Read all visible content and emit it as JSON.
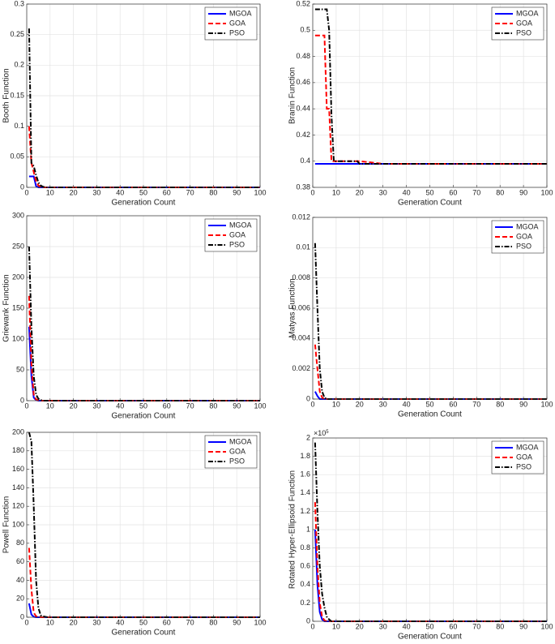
{
  "chart_data": [
    {
      "type": "line",
      "xlabel": "Generation Count",
      "ylabel": "Booth Function",
      "x": [
        1,
        2,
        3,
        4,
        5,
        6,
        7,
        8,
        9,
        10,
        11,
        12,
        13,
        14,
        15,
        16,
        17,
        18,
        19,
        20,
        30,
        40,
        50,
        60,
        70,
        80,
        90,
        100
      ],
      "series": [
        {
          "name": "MGOA",
          "color": "#0000ff",
          "line_style": "solid",
          "values": [
            0.018,
            0.018,
            0.018,
            0.002,
            0,
            0,
            0,
            0,
            0,
            0,
            0,
            0,
            0,
            0,
            0,
            0,
            0,
            0,
            0,
            0,
            0,
            0,
            0,
            0,
            0,
            0,
            0,
            0
          ]
        },
        {
          "name": "GOA",
          "color": "#ff0000",
          "line_style": "dashed",
          "values": [
            0.1,
            0.04,
            0.025,
            0.01,
            0.003,
            0.001,
            0,
            0,
            0,
            0,
            0,
            0,
            0,
            0,
            0,
            0,
            0,
            0,
            0,
            0,
            0,
            0,
            0,
            0,
            0,
            0,
            0,
            0
          ]
        },
        {
          "name": "PSO",
          "color": "#000000",
          "line_style": "dashdot",
          "values": [
            0.26,
            0.04,
            0.035,
            0.02,
            0.008,
            0.003,
            0.001,
            0,
            0,
            0,
            0,
            0,
            0,
            0,
            0,
            0,
            0,
            0,
            0,
            0,
            0,
            0,
            0,
            0,
            0,
            0,
            0,
            0
          ]
        }
      ],
      "xlim": [
        0,
        100
      ],
      "xticks": [
        0,
        10,
        20,
        30,
        40,
        50,
        60,
        70,
        80,
        90,
        100
      ],
      "ylim": [
        0,
        0.3
      ],
      "yticks": [
        0,
        0.05,
        0.1,
        0.15,
        0.2,
        0.25,
        0.3
      ],
      "grid": true,
      "legend": "upper right"
    },
    {
      "type": "line",
      "xlabel": "Generation Count",
      "ylabel": "Branin Function",
      "x": [
        1,
        2,
        3,
        4,
        5,
        6,
        7,
        8,
        9,
        10,
        11,
        12,
        13,
        14,
        15,
        16,
        17,
        18,
        19,
        20,
        30,
        40,
        50,
        60,
        70,
        80,
        90,
        100
      ],
      "series": [
        {
          "name": "MGOA",
          "color": "#0000ff",
          "line_style": "solid",
          "values": [
            0.398,
            0.398,
            0.398,
            0.398,
            0.398,
            0.398,
            0.398,
            0.398,
            0.398,
            0.398,
            0.398,
            0.398,
            0.398,
            0.398,
            0.398,
            0.398,
            0.398,
            0.398,
            0.398,
            0.398,
            0.398,
            0.398,
            0.398,
            0.398,
            0.398,
            0.398,
            0.398,
            0.398
          ]
        },
        {
          "name": "GOA",
          "color": "#ff0000",
          "line_style": "dashed",
          "values": [
            0.496,
            0.496,
            0.496,
            0.496,
            0.496,
            0.44,
            0.44,
            0.4,
            0.4,
            0.4,
            0.4,
            0.4,
            0.4,
            0.4,
            0.4,
            0.4,
            0.4,
            0.4,
            0.4,
            0.4,
            0.398,
            0.398,
            0.398,
            0.398,
            0.398,
            0.398,
            0.398,
            0.398
          ]
        },
        {
          "name": "PSO",
          "color": "#000000",
          "line_style": "dashdot",
          "values": [
            0.516,
            0.516,
            0.516,
            0.516,
            0.516,
            0.516,
            0.5,
            0.435,
            0.4,
            0.4,
            0.4,
            0.4,
            0.4,
            0.4,
            0.4,
            0.4,
            0.4,
            0.4,
            0.4,
            0.398,
            0.398,
            0.398,
            0.398,
            0.398,
            0.398,
            0.398,
            0.398,
            0.398
          ]
        }
      ],
      "xlim": [
        0,
        100
      ],
      "xticks": [
        0,
        10,
        20,
        30,
        40,
        50,
        60,
        70,
        80,
        90,
        100
      ],
      "ylim": [
        0.38,
        0.52
      ],
      "yticks": [
        0.38,
        0.4,
        0.42,
        0.44,
        0.46,
        0.48,
        0.5,
        0.52
      ],
      "grid": true,
      "legend": "upper right"
    },
    {
      "type": "line",
      "xlabel": "Generation Count",
      "ylabel": "Griewank Function",
      "x": [
        1,
        2,
        3,
        4,
        5,
        6,
        7,
        8,
        9,
        10,
        11,
        12,
        13,
        14,
        15,
        16,
        17,
        18,
        19,
        20,
        30,
        40,
        50,
        60,
        70,
        80,
        90,
        100
      ],
      "series": [
        {
          "name": "MGOA",
          "color": "#0000ff",
          "line_style": "solid",
          "values": [
            120,
            40,
            5,
            1,
            0,
            0,
            0,
            0,
            0,
            0,
            0,
            0,
            0,
            0,
            0,
            0,
            0,
            0,
            0,
            0,
            0,
            0,
            0,
            0,
            0,
            0,
            0,
            0
          ]
        },
        {
          "name": "GOA",
          "color": "#ff0000",
          "line_style": "dashed",
          "values": [
            170,
            60,
            10,
            2,
            0.5,
            0,
            0,
            0,
            0,
            0,
            0,
            0,
            0,
            0,
            0,
            0,
            0,
            0,
            0,
            0,
            0,
            0,
            0,
            0,
            0,
            0,
            0,
            0
          ]
        },
        {
          "name": "PSO",
          "color": "#000000",
          "line_style": "dashdot",
          "values": [
            250,
            120,
            40,
            10,
            3,
            1,
            0,
            0,
            0,
            0,
            0,
            0,
            0,
            0,
            0,
            0,
            0,
            0,
            0,
            0,
            0,
            0,
            0,
            0,
            0,
            0,
            0,
            0
          ]
        }
      ],
      "xlim": [
        0,
        100
      ],
      "xticks": [
        0,
        10,
        20,
        30,
        40,
        50,
        60,
        70,
        80,
        90,
        100
      ],
      "ylim": [
        0,
        300
      ],
      "yticks": [
        0,
        50,
        100,
        150,
        200,
        250,
        300
      ],
      "grid": true,
      "legend": "upper right"
    },
    {
      "type": "line",
      "xlabel": "Generation Count",
      "ylabel": "Matyas Function",
      "x": [
        1,
        2,
        3,
        4,
        5,
        6,
        7,
        8,
        9,
        10,
        11,
        12,
        13,
        14,
        15,
        16,
        17,
        18,
        19,
        20,
        30,
        40,
        50,
        60,
        70,
        80,
        90,
        100
      ],
      "series": [
        {
          "name": "MGOA",
          "color": "#0000ff",
          "line_style": "solid",
          "values": [
            0.0005,
            0.0002,
            0,
            0,
            0,
            0,
            0,
            0,
            0,
            0,
            0,
            0,
            0,
            0,
            0,
            0,
            0,
            0,
            0,
            0,
            0,
            0,
            0,
            0,
            0,
            0,
            0,
            0
          ]
        },
        {
          "name": "GOA",
          "color": "#ff0000",
          "line_style": "dashed",
          "values": [
            0.0036,
            0.002,
            0.0005,
            0.0001,
            0,
            0,
            0,
            0,
            0,
            0,
            0,
            0,
            0,
            0,
            0,
            0,
            0,
            0,
            0,
            0,
            0,
            0,
            0,
            0,
            0,
            0,
            0,
            0
          ]
        },
        {
          "name": "PSO",
          "color": "#000000",
          "line_style": "dashdot",
          "values": [
            0.0103,
            0.006,
            0.002,
            0.0005,
            0.0001,
            0,
            0,
            0,
            0,
            0,
            0,
            0,
            0,
            0,
            0,
            0,
            0,
            0,
            0,
            0,
            0,
            0,
            0,
            0,
            0,
            0,
            0,
            0
          ]
        }
      ],
      "xlim": [
        0,
        100
      ],
      "xticks": [
        0,
        10,
        20,
        30,
        40,
        50,
        60,
        70,
        80,
        90,
        100
      ],
      "ylim": [
        0,
        0.012
      ],
      "yticks": [
        0,
        0.002,
        0.004,
        0.006,
        0.008,
        0.01,
        0.012
      ],
      "grid": true,
      "legend": "upper right"
    },
    {
      "type": "line",
      "xlabel": "Generation Count",
      "ylabel": "Powell Function",
      "x": [
        1,
        2,
        3,
        4,
        5,
        6,
        7,
        8,
        9,
        10,
        11,
        12,
        13,
        14,
        15,
        16,
        17,
        18,
        19,
        20,
        30,
        40,
        50,
        60,
        70,
        80,
        90,
        100
      ],
      "series": [
        {
          "name": "MGOA",
          "color": "#0000ff",
          "line_style": "solid",
          "values": [
            15,
            3,
            0.5,
            0,
            0,
            0,
            0,
            0,
            0,
            0,
            0,
            0,
            0,
            0,
            0,
            0,
            0,
            0,
            0,
            0,
            0,
            0,
            0,
            0,
            0,
            0,
            0,
            0
          ]
        },
        {
          "name": "GOA",
          "color": "#ff0000",
          "line_style": "dashed",
          "values": [
            75,
            30,
            5,
            1,
            0.5,
            0,
            0,
            0,
            0,
            0,
            0,
            0,
            0,
            0,
            0,
            0,
            0,
            0,
            0,
            0,
            0,
            0,
            0,
            0,
            0,
            0,
            0,
            0
          ]
        },
        {
          "name": "PSO",
          "color": "#000000",
          "line_style": "dashdot",
          "values": [
            200,
            190,
            120,
            40,
            10,
            2,
            1,
            0.5,
            0,
            0,
            0,
            0,
            0,
            0,
            0,
            0,
            0,
            0,
            0,
            0,
            0,
            0,
            0,
            0,
            0,
            0,
            0,
            0
          ]
        }
      ],
      "xlim": [
        0,
        100
      ],
      "xticks": [
        0,
        10,
        20,
        30,
        40,
        50,
        60,
        70,
        80,
        90,
        100
      ],
      "ylim": [
        0,
        200
      ],
      "yticks": [
        0,
        20,
        40,
        60,
        80,
        100,
        120,
        140,
        160,
        180,
        200
      ],
      "grid": true,
      "legend": "upper right"
    },
    {
      "type": "line",
      "xlabel": "Generation Count",
      "ylabel": "Rotated Hyper-Ellipsoid Function",
      "y_multiplier": {
        "base": "×10",
        "exponent": "5"
      },
      "x": [
        1,
        2,
        3,
        4,
        5,
        6,
        7,
        8,
        9,
        10,
        11,
        12,
        13,
        14,
        15,
        16,
        17,
        18,
        19,
        20,
        30,
        40,
        50,
        60,
        70,
        80,
        90,
        100
      ],
      "series": [
        {
          "name": "MGOA",
          "color": "#0000ff",
          "line_style": "solid",
          "values": [
            1.0,
            0.4,
            0.1,
            0.02,
            0,
            0,
            0,
            0,
            0,
            0,
            0,
            0,
            0,
            0,
            0,
            0,
            0,
            0,
            0,
            0,
            0,
            0,
            0,
            0,
            0,
            0,
            0,
            0
          ]
        },
        {
          "name": "GOA",
          "color": "#ff0000",
          "line_style": "dashed",
          "values": [
            1.3,
            0.6,
            0.2,
            0.05,
            0.01,
            0,
            0,
            0,
            0,
            0,
            0,
            0,
            0,
            0,
            0,
            0,
            0,
            0,
            0,
            0,
            0,
            0,
            0,
            0,
            0,
            0,
            0,
            0
          ]
        },
        {
          "name": "PSO",
          "color": "#000000",
          "line_style": "dashdot",
          "values": [
            1.95,
            1.2,
            0.6,
            0.3,
            0.15,
            0.05,
            0.02,
            0,
            0,
            0,
            0,
            0,
            0,
            0,
            0,
            0,
            0,
            0,
            0,
            0,
            0,
            0,
            0,
            0,
            0,
            0,
            0,
            0
          ]
        }
      ],
      "xlim": [
        0,
        100
      ],
      "xticks": [
        0,
        10,
        20,
        30,
        40,
        50,
        60,
        70,
        80,
        90,
        100
      ],
      "ylim": [
        0,
        2
      ],
      "yticks": [
        0,
        0.2,
        0.4,
        0.6,
        0.8,
        1,
        1.2,
        1.4,
        1.6,
        1.8,
        2
      ],
      "grid": true,
      "legend": "upper right"
    }
  ]
}
